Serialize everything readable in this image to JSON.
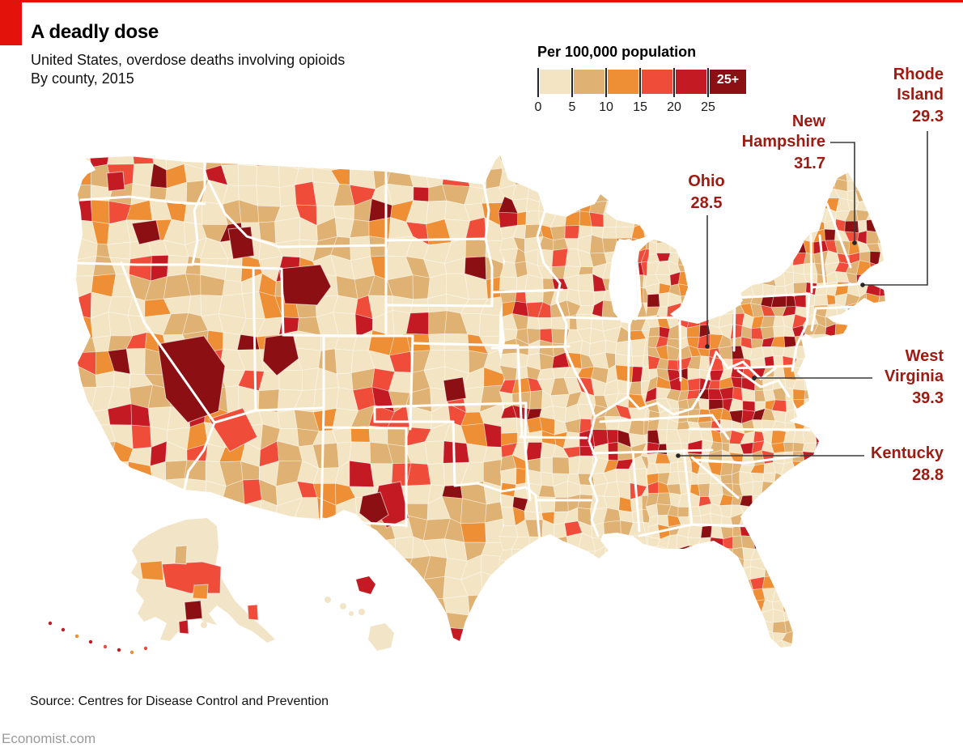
{
  "brand": {
    "accent_red": "#E3120B"
  },
  "header": {
    "title": "A deadly dose",
    "subtitle_line1": "United States, overdose deaths involving opioids",
    "subtitle_line2": "By county, 2015"
  },
  "legend": {
    "title": "Per 100,000 population",
    "tick_labels": [
      "0",
      "5",
      "10",
      "15",
      "20",
      "25"
    ],
    "top_label": "25+",
    "bin_colors": [
      "#F3E5C3",
      "#DFB274",
      "#EF8F35",
      "#F04C3A",
      "#C41A24",
      "#8B0F13"
    ]
  },
  "annotations": [
    {
      "id": "rhode-island",
      "lines": [
        "Rhode",
        "Island"
      ],
      "value": "29.3"
    },
    {
      "id": "new-hampshire",
      "lines": [
        "New",
        "Hampshire"
      ],
      "value": "31.7"
    },
    {
      "id": "ohio",
      "lines": [
        "Ohio"
      ],
      "value": "28.5"
    },
    {
      "id": "west-virginia",
      "lines": [
        "West",
        "Virginia"
      ],
      "value": "39.3"
    },
    {
      "id": "kentucky",
      "lines": [
        "Kentucky"
      ],
      "value": "28.8"
    }
  ],
  "footer": {
    "source": "Source: Centres for Disease Control and Prevention",
    "site": "Economist.com"
  },
  "chart_data": {
    "type": "choropleth_map",
    "title": "A deadly dose",
    "subtitle": "United States, overdose deaths involving opioids, by county, 2015",
    "metric": "Overdose deaths involving opioids per 100,000 population",
    "year": 2015,
    "geography": "United States, by county (incl. Alaska and Hawaii)",
    "legend_title": "Per 100,000 population",
    "bins": [
      {
        "range": [
          0,
          5
        ],
        "color": "#F3E5C3"
      },
      {
        "range": [
          5,
          10
        ],
        "color": "#DFB274"
      },
      {
        "range": [
          10,
          15
        ],
        "color": "#EF8F35"
      },
      {
        "range": [
          15,
          20
        ],
        "color": "#F04C3A"
      },
      {
        "range": [
          20,
          25
        ],
        "color": "#C41A24"
      },
      {
        "range": [
          25,
          null
        ],
        "label": "25+",
        "color": "#8B0F13"
      }
    ],
    "labeled_states": [
      {
        "state": "Rhode Island",
        "value": 29.3
      },
      {
        "state": "New Hampshire",
        "value": 31.7
      },
      {
        "state": "Ohio",
        "value": 28.5
      },
      {
        "state": "West Virginia",
        "value": 39.3
      },
      {
        "state": "Kentucky",
        "value": 28.8
      }
    ],
    "pattern_notes": "Highest rates cluster in Appalachia (WV, KY, OH), New England, the Southwest and scattered western counties; Great Plains and Texas interior are lowest.",
    "source": "Centres for Disease Control and Prevention"
  }
}
